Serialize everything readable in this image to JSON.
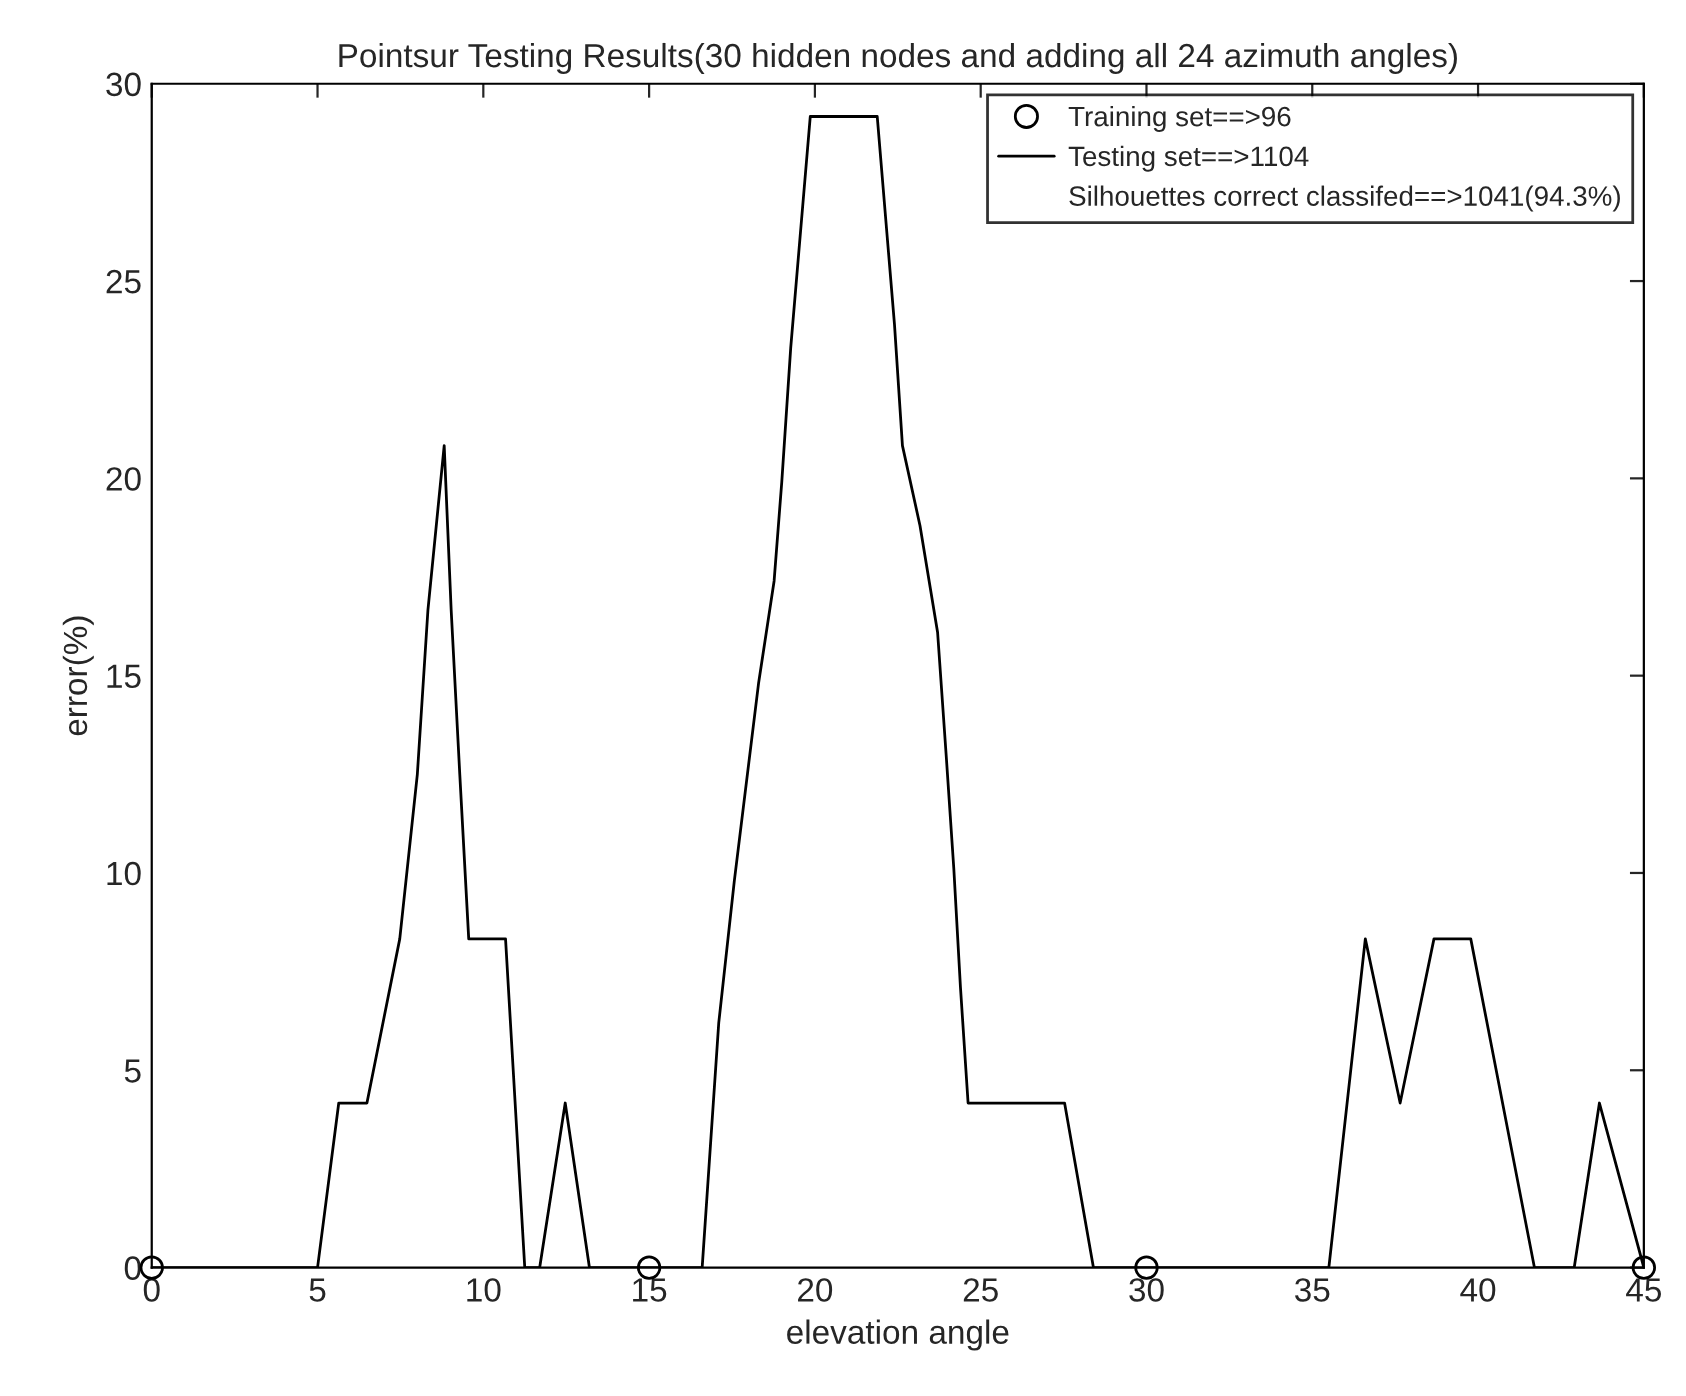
{
  "chart_data": {
    "type": "line",
    "title": "Pointsur Testing Results(30 hidden nodes and adding all 24 azimuth angles)",
    "xlabel": "elevation angle",
    "ylabel": "error(%)",
    "series": [
      {
        "name": "Training set==>96",
        "type": "scatter",
        "marker": "circle",
        "color": "#000000",
        "x": [
          0,
          15,
          30,
          45
        ],
        "values": [
          0,
          0,
          0,
          0
        ]
      },
      {
        "name": "Testing set==>1104",
        "marker": "none",
        "line_style": "solid",
        "color": "#000000",
        "x": [
          0,
          5.0,
          5.64,
          6.49,
          7.48,
          8.01,
          8.33,
          8.82,
          9.03,
          9.29,
          9.56,
          10.67,
          11.25,
          11.7,
          12.47,
          13.2,
          16.6,
          17.1,
          17.57,
          18.3,
          18.77,
          19.0,
          19.27,
          19.86,
          21.88,
          22.4,
          22.64,
          23.17,
          23.7,
          23.97,
          24.19,
          24.39,
          24.62,
          27.53,
          28.4,
          35.5,
          36.6,
          37.65,
          38.67,
          39.78,
          41.7,
          42.9,
          43.66,
          45
        ],
        "values": [
          0,
          0,
          4.17,
          4.17,
          8.33,
          12.5,
          16.67,
          20.83,
          16.67,
          12.5,
          8.33,
          8.33,
          0,
          0,
          4.17,
          0,
          0,
          6.2,
          9.8,
          14.8,
          17.4,
          19.9,
          23.3,
          29.17,
          29.17,
          23.9,
          20.83,
          18.8,
          16.1,
          12.85,
          10.1,
          7.1,
          4.17,
          4.17,
          0,
          0,
          8.33,
          4.17,
          8.33,
          8.33,
          0,
          0,
          4.17,
          0
        ]
      }
    ],
    "annotations": [
      "Silhouettes correct classifed==>1041(94.3%)"
    ],
    "xlim": [
      0,
      45
    ],
    "xticks": [
      0,
      5,
      10,
      15,
      20,
      25,
      30,
      35,
      40,
      45
    ],
    "ylim": [
      0,
      30
    ],
    "yticks": [
      0,
      5,
      10,
      15,
      20,
      25,
      30
    ],
    "grid": false,
    "legend": "top right"
  }
}
